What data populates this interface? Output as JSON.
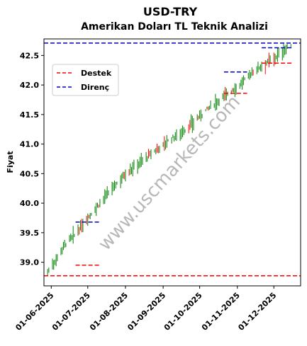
{
  "chart_data": {
    "type": "candlestick",
    "title": "USD-TRY",
    "subtitle": "Amerikan Doları TL Teknik Analizi",
    "xlabel": "",
    "ylabel": "Fiyat",
    "ylim": [
      38.6,
      42.78
    ],
    "xlim": [
      "2025-05-26",
      "2025-12-23"
    ],
    "x_ticks": [
      "01-06-2025",
      "01-07-2025",
      "01-08-2025",
      "01-09-2025",
      "01-10-2025",
      "01-11-2025",
      "01-12-2025"
    ],
    "y_ticks": [
      "39.0",
      "39.5",
      "40.0",
      "40.5",
      "41.0",
      "41.5",
      "42.0",
      "42.5"
    ],
    "watermark": "www.uscmarkets.com",
    "legend": {
      "position": "upper-left",
      "entries": [
        "Destek",
        "Direnç"
      ]
    },
    "colors": {
      "support": "#ff0000",
      "resistance": "#0000cc",
      "candle_up": "#008000",
      "candle_down": "#ff0000"
    },
    "price_path": [
      {
        "date": "2025-05-29",
        "value": 38.83
      },
      {
        "date": "2025-06-05",
        "value": 39.05
      },
      {
        "date": "2025-06-12",
        "value": 39.3
      },
      {
        "date": "2025-06-20",
        "value": 39.45
      },
      {
        "date": "2025-07-01",
        "value": 39.75
      },
      {
        "date": "2025-07-15",
        "value": 40.1
      },
      {
        "date": "2025-08-01",
        "value": 40.5
      },
      {
        "date": "2025-08-20",
        "value": 40.8
      },
      {
        "date": "2025-09-05",
        "value": 41.05
      },
      {
        "date": "2025-09-20",
        "value": 41.25
      },
      {
        "date": "2025-10-05",
        "value": 41.55
      },
      {
        "date": "2025-10-20",
        "value": 41.8
      },
      {
        "date": "2025-11-03",
        "value": 42.0
      },
      {
        "date": "2025-11-15",
        "value": 42.25
      },
      {
        "date": "2025-12-01",
        "value": 42.45
      },
      {
        "date": "2025-12-15",
        "value": 42.68
      }
    ],
    "support_levels": [
      {
        "value": 38.77,
        "start": "2025-05-26",
        "end": "2025-12-23"
      },
      {
        "value": 38.95,
        "start": "2025-06-21",
        "end": "2025-07-11"
      },
      {
        "value": 41.86,
        "start": "2025-10-21",
        "end": "2025-11-09"
      },
      {
        "value": 42.37,
        "start": "2025-11-21",
        "end": "2025-12-16"
      }
    ],
    "resistance_levels": [
      {
        "value": 42.71,
        "start": "2025-05-26",
        "end": "2025-12-23"
      },
      {
        "value": 39.68,
        "start": "2025-06-21",
        "end": "2025-07-11"
      },
      {
        "value": 42.22,
        "start": "2025-10-21",
        "end": "2025-11-09"
      },
      {
        "value": 42.63,
        "start": "2025-11-21",
        "end": "2025-12-16"
      }
    ]
  }
}
